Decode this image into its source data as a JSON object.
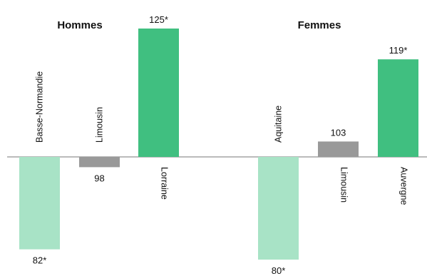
{
  "chart_data": {
    "type": "bar",
    "baseline": 100,
    "colors": {
      "above_significant": "#40bf80",
      "below_significant": "#a8e3c6",
      "not_significant": "#999999"
    },
    "panels": [
      {
        "title": "Hommes",
        "categories": [
          "Basse-Normandie",
          "Limousin",
          "Lorraine"
        ],
        "values": [
          82,
          98,
          125
        ],
        "labels": [
          "82*",
          "98",
          "125*"
        ],
        "significant": [
          true,
          false,
          true
        ]
      },
      {
        "title": "Femmes",
        "categories": [
          "Aquitaine",
          "Limousin",
          "Auvergne"
        ],
        "values": [
          80,
          103,
          119
        ],
        "labels": [
          "80*",
          "103",
          "119*"
        ],
        "significant": [
          true,
          false,
          true
        ]
      }
    ]
  }
}
